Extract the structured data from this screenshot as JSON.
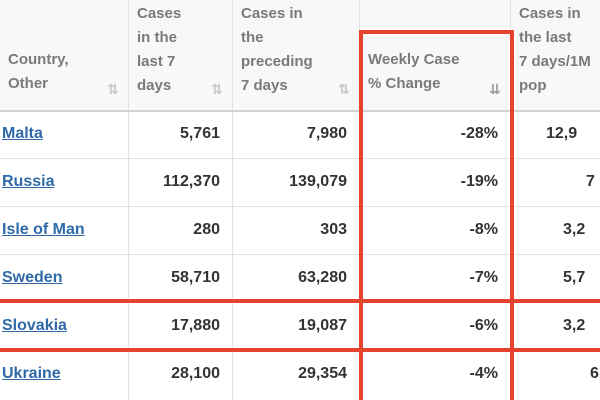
{
  "columns": [
    {
      "label_lines": [
        "Country,",
        "Other"
      ],
      "sort_icon": "sort-arrows-icon"
    },
    {
      "label_lines": [
        "Cases",
        "in the",
        "last 7",
        "days"
      ],
      "sort_icon": "sort-arrows-icon"
    },
    {
      "label_lines": [
        "Cases in",
        "the",
        "preceding",
        "7 days"
      ],
      "sort_icon": "sort-arrows-icon"
    },
    {
      "label_lines": [
        "Weekly Case",
        "% Change"
      ],
      "sort_icon": "sort-descending-icon"
    },
    {
      "label_lines": [
        "Cases in",
        "the last",
        "7 days/1M",
        "pop"
      ],
      "sort_icon": ""
    }
  ],
  "rows": [
    {
      "country": "Malta",
      "last7": "5,761",
      "preceding7": "7,980",
      "change": "-28%",
      "per_million": "12,9"
    },
    {
      "country": "Russia",
      "last7": "112,370",
      "preceding7": "139,079",
      "change": "-19%",
      "per_million": "7"
    },
    {
      "country": "Isle of Man",
      "last7": "280",
      "preceding7": "303",
      "change": "-8%",
      "per_million": "3,2"
    },
    {
      "country": "Sweden",
      "last7": "58,710",
      "preceding7": "63,280",
      "change": "-7%",
      "per_million": "5,7"
    },
    {
      "country": "Slovakia",
      "last7": "17,880",
      "preceding7": "19,087",
      "change": "-6%",
      "per_million": "3,2"
    },
    {
      "country": "Ukraine",
      "last7": "28,100",
      "preceding7": "29,354",
      "change": "-4%",
      "per_million": "6"
    }
  ],
  "highlight_color": "#e4432d"
}
